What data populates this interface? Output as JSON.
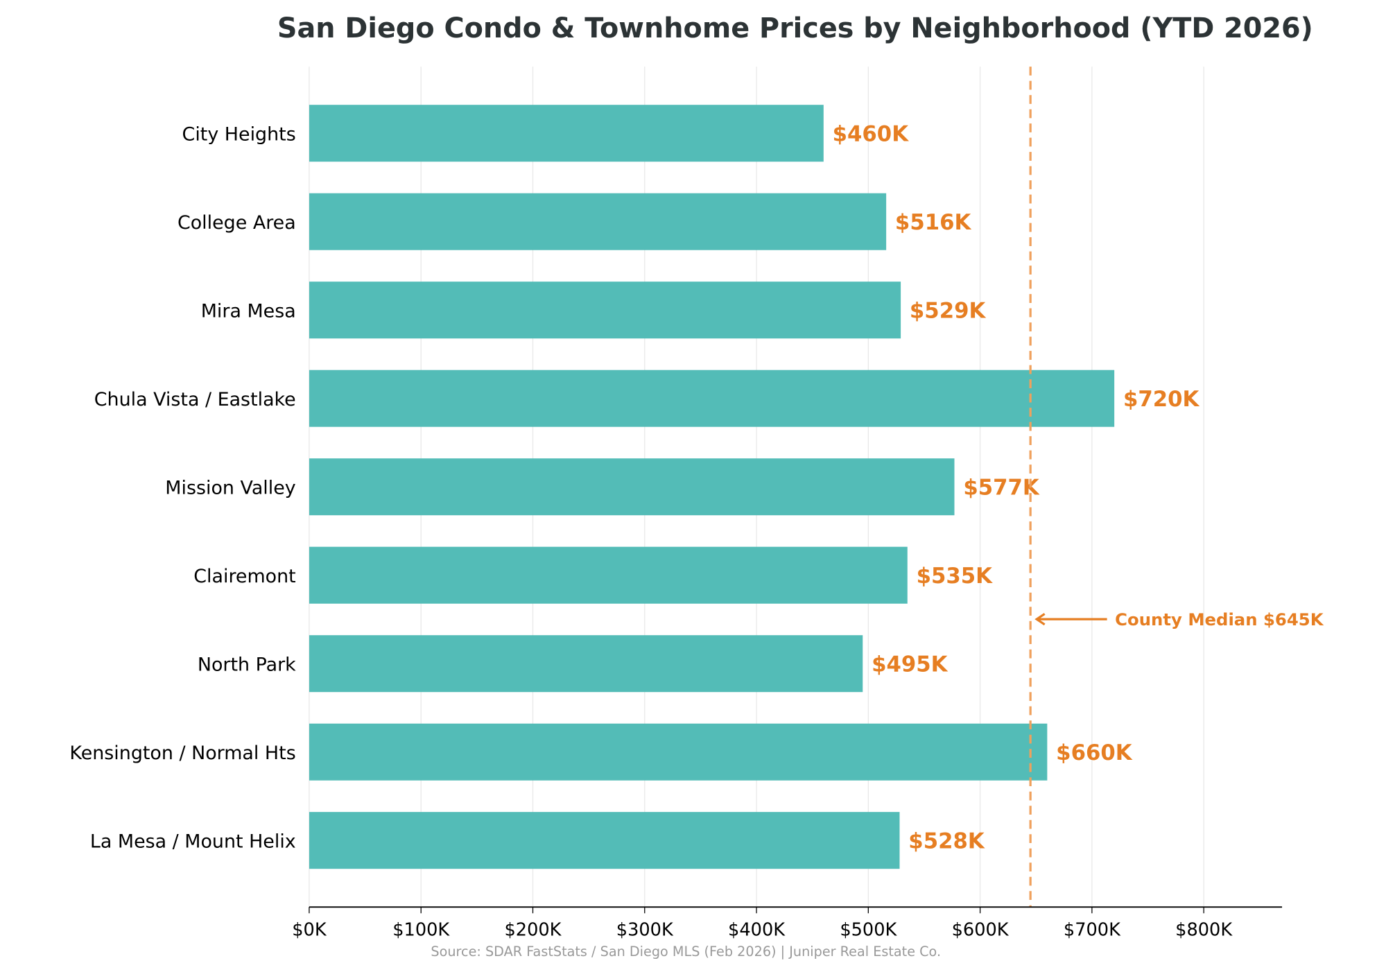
{
  "chart_data": {
    "type": "bar",
    "orientation": "horizontal",
    "title": "San Diego Condo & Townhome Prices by Neighborhood (YTD 2026)",
    "categories": [
      "City Heights",
      "College Area",
      "Mira Mesa",
      "Chula Vista / Eastlake",
      "Mission Valley",
      "Clairemont",
      "North Park",
      "Kensington / Normal Hts",
      "La Mesa / Mount Helix"
    ],
    "values": [
      460,
      516,
      529,
      720,
      577,
      535,
      495,
      660,
      528
    ],
    "value_labels": [
      "$460K",
      "$516K",
      "$529K",
      "$720K",
      "$577K",
      "$535K",
      "$495K",
      "$660K",
      "$528K"
    ],
    "unit": "thousand USD",
    "xlim": [
      0,
      870
    ],
    "xticks": [
      0,
      100,
      200,
      300,
      400,
      500,
      600,
      700,
      800
    ],
    "xtick_labels": [
      "$0K",
      "$100K",
      "$200K",
      "$300K",
      "$400K",
      "$500K",
      "$600K",
      "$700K",
      "$800K"
    ],
    "grid": "vertical",
    "reference_line": {
      "value": 645,
      "label": "County Median $645K",
      "style": "dashed"
    },
    "colors": {
      "bar": "#4dbab5",
      "accent": "#e67e22",
      "reference": "#f0a05c",
      "title": "#2c3335"
    },
    "source": "Source: SDAR FastStats / San Diego MLS (Feb 2026) | Juniper Real Estate Co."
  }
}
